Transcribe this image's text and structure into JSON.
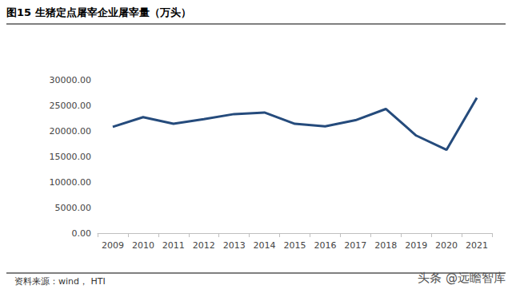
{
  "chart_data": {
    "type": "line",
    "title": "图15 生猪定点屠宰企业屠宰量（万头）",
    "categories": [
      "2009",
      "2010",
      "2011",
      "2012",
      "2013",
      "2014",
      "2015",
      "2016",
      "2017",
      "2018",
      "2019",
      "2020",
      "2021"
    ],
    "values": [
      20800,
      22700,
      21400,
      22300,
      23300,
      23600,
      21400,
      20900,
      22100,
      24300,
      19100,
      16300,
      26500
    ],
    "color": "#254b7c",
    "ylim": [
      0,
      30000
    ],
    "yticks": [
      {
        "value": 0,
        "label": "0.00"
      },
      {
        "value": 5000,
        "label": "5000.00"
      },
      {
        "value": 10000,
        "label": "10000.00"
      },
      {
        "value": 15000,
        "label": "15000.00"
      },
      {
        "value": 20000,
        "label": "20000.00"
      },
      {
        "value": 25000,
        "label": "25000.00"
      },
      {
        "value": 30000,
        "label": "30000.00"
      }
    ],
    "grid": false,
    "annotations": [
      "资料来源：wind， HTI",
      "头条 @远瞻智库"
    ]
  }
}
